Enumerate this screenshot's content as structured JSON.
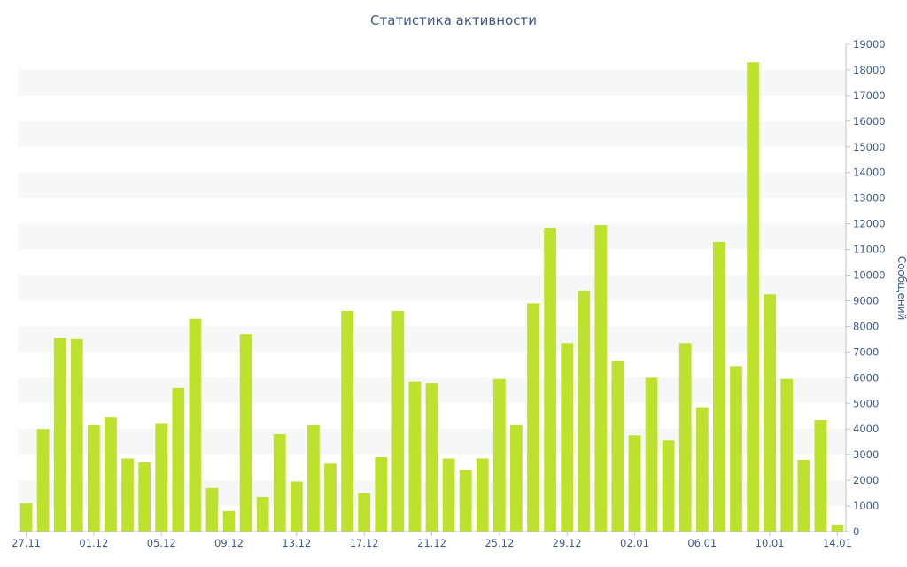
{
  "chart_data": {
    "type": "bar",
    "title": "Статистика активности",
    "ylabel": "Сообщений",
    "xlabel": "",
    "ylim": [
      0,
      19000
    ],
    "y_ticks": [
      0,
      1000,
      2000,
      3000,
      4000,
      5000,
      6000,
      7000,
      8000,
      9000,
      10000,
      11000,
      12000,
      13000,
      14000,
      15000,
      16000,
      17000,
      18000,
      19000
    ],
    "y_axis_side": "right",
    "grid": "horizontal alternating bands",
    "colors": {
      "bar": "#bde12d",
      "band": "#f7f7f7",
      "text": "#3e5a8a"
    },
    "categories": [
      "27.11",
      "28.11",
      "29.11",
      "30.11",
      "01.12",
      "02.12",
      "03.12",
      "04.12",
      "05.12",
      "06.12",
      "07.12",
      "08.12",
      "09.12",
      "10.12",
      "11.12",
      "12.12",
      "13.12",
      "14.12",
      "15.12",
      "16.12",
      "17.12",
      "18.12",
      "19.12",
      "20.12",
      "21.12",
      "22.12",
      "23.12",
      "24.12",
      "25.12",
      "26.12",
      "27.12",
      "28.12",
      "29.12",
      "30.12",
      "31.12",
      "01.01",
      "02.01",
      "03.01",
      "04.01",
      "05.01",
      "06.01",
      "07.01",
      "08.01",
      "09.01",
      "10.01",
      "11.01",
      "12.01",
      "13.01",
      "14.01"
    ],
    "x_tick_labels": [
      "27.11",
      "01.12",
      "05.12",
      "09.12",
      "13.12",
      "17.12",
      "21.12",
      "25.12",
      "29.12",
      "02.01",
      "06.01",
      "10.01",
      "14.01"
    ],
    "values": [
      1100,
      4000,
      7550,
      7500,
      4150,
      4450,
      2850,
      2700,
      4200,
      5600,
      8300,
      1700,
      800,
      7700,
      1350,
      3800,
      1950,
      4150,
      2650,
      8600,
      1500,
      2900,
      8600,
      5850,
      5800,
      2850,
      2400,
      2850,
      5950,
      4150,
      8900,
      11850,
      7350,
      9400,
      11950,
      6650,
      3750,
      6000,
      3550,
      7350,
      4850,
      11300,
      6450,
      18300,
      9250,
      5950,
      2800,
      4350,
      250
    ]
  }
}
